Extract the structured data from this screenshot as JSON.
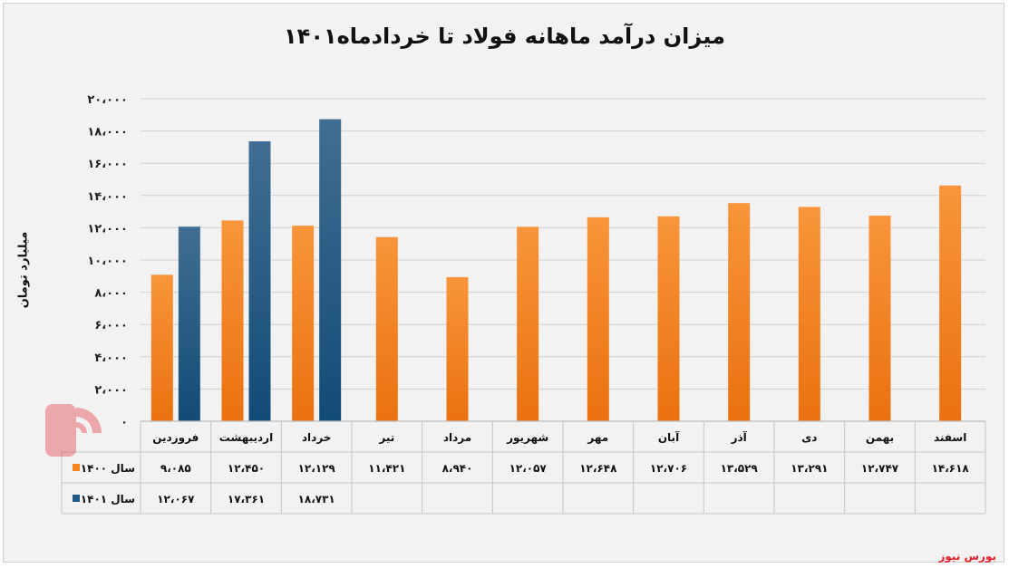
{
  "header": {
    "title": "میزان درآمد ماهانه فولاد تا خردادماه۱۴۰۱"
  },
  "footer": {
    "source": "بورس نیوز"
  },
  "colors": {
    "series_1400": "#f58420",
    "series_1401": "#1f5a85",
    "grid": "#d0d0d0"
  },
  "chart_data": {
    "type": "bar",
    "title": "میزان درآمد ماهانه فولاد تا خردادماه۱۴۰۱",
    "ylabel": "میلیارد تومان",
    "xlabel": "",
    "ylim": [
      0,
      20000
    ],
    "y_ticks": [
      0,
      2000,
      4000,
      6000,
      8000,
      10000,
      12000,
      14000,
      16000,
      18000,
      20000
    ],
    "y_tick_labels": [
      "۰",
      "۲،۰۰۰",
      "۴،۰۰۰",
      "۶،۰۰۰",
      "۸،۰۰۰",
      "۱۰،۰۰۰",
      "۱۲،۰۰۰",
      "۱۴،۰۰۰",
      "۱۶،۰۰۰",
      "۱۸،۰۰۰",
      "۲۰،۰۰۰"
    ],
    "grid": true,
    "legend": "table-bottom-right",
    "categories": [
      "فروردین",
      "اردیبهشت",
      "خرداد",
      "تیر",
      "مرداد",
      "شهریور",
      "مهر",
      "آبان",
      "آذر",
      "دی",
      "بهمن",
      "اسفند"
    ],
    "series": [
      {
        "name": "سال ۱۴۰۰",
        "color": "#f58420",
        "values": [
          9085,
          12450,
          12129,
          11421,
          8940,
          12057,
          12648,
          12706,
          13529,
          13291,
          12747,
          14618
        ],
        "labels": [
          "۹،۰۸۵",
          "۱۲،۴۵۰",
          "۱۲،۱۲۹",
          "۱۱،۴۲۱",
          "۸،۹۴۰",
          "۱۲،۰۵۷",
          "۱۲،۶۴۸",
          "۱۲،۷۰۶",
          "۱۳،۵۲۹",
          "۱۳،۲۹۱",
          "۱۲،۷۴۷",
          "۱۴،۶۱۸"
        ]
      },
      {
        "name": "سال ۱۴۰۱",
        "color": "#1f5a85",
        "values": [
          12067,
          17361,
          18731,
          null,
          null,
          null,
          null,
          null,
          null,
          null,
          null,
          null
        ],
        "labels": [
          "۱۲،۰۶۷",
          "۱۷،۳۶۱",
          "۱۸،۷۳۱",
          "",
          "",
          "",
          "",
          "",
          "",
          "",
          "",
          ""
        ]
      }
    ]
  }
}
